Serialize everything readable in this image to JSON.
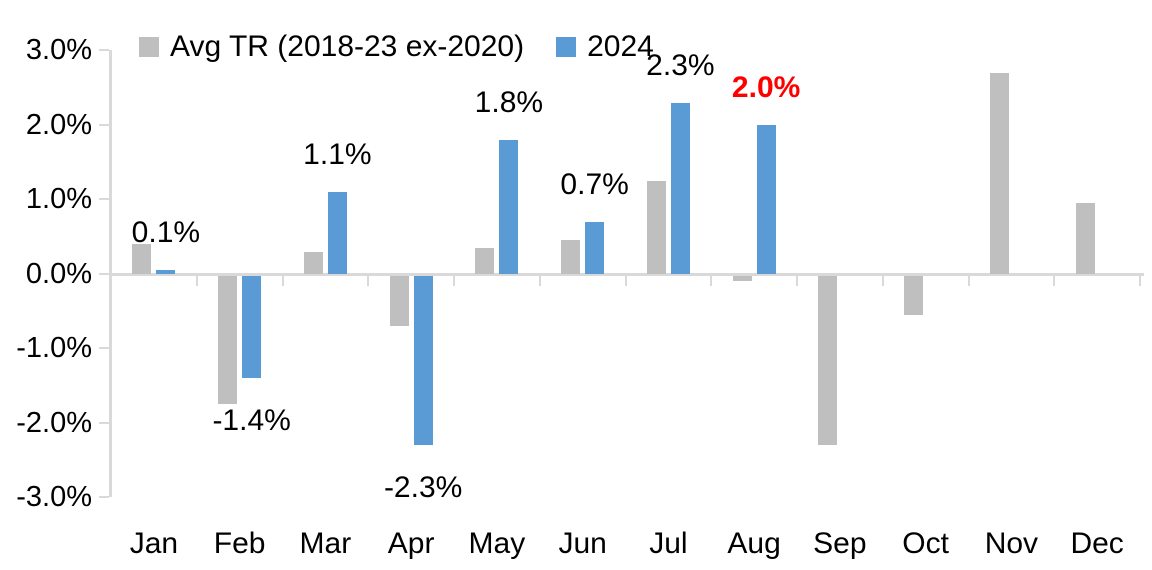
{
  "chart_data": {
    "type": "bar",
    "title": "",
    "xlabel": "",
    "ylabel": "",
    "categories": [
      "Jan",
      "Feb",
      "Mar",
      "Apr",
      "May",
      "Jun",
      "Jul",
      "Aug",
      "Sep",
      "Oct",
      "Nov",
      "Dec"
    ],
    "series": [
      {
        "name": "Avg TR (2018-23 ex-2020)",
        "color": "#bfbfbf",
        "values": [
          0.4,
          -1.75,
          0.3,
          -0.7,
          0.35,
          0.45,
          1.25,
          -0.1,
          -2.3,
          -0.55,
          2.7,
          0.95
        ]
      },
      {
        "name": "2024",
        "color": "#5b9bd5",
        "values": [
          0.05,
          -1.4,
          1.1,
          -2.3,
          1.8,
          0.7,
          2.3,
          2.0,
          null,
          null,
          null,
          null
        ]
      }
    ],
    "data_labels": [
      {
        "category": "Jan",
        "series": "2024",
        "text": "0.1%",
        "color": "#000000",
        "bold": false
      },
      {
        "category": "Feb",
        "series": "2024",
        "text": "-1.4%",
        "color": "#000000",
        "bold": false
      },
      {
        "category": "Mar",
        "series": "2024",
        "text": "1.1%",
        "color": "#000000",
        "bold": false
      },
      {
        "category": "Apr",
        "series": "2024",
        "text": "-2.3%",
        "color": "#000000",
        "bold": false
      },
      {
        "category": "May",
        "series": "2024",
        "text": "1.8%",
        "color": "#000000",
        "bold": false
      },
      {
        "category": "Jun",
        "series": "2024",
        "text": "0.7%",
        "color": "#000000",
        "bold": false
      },
      {
        "category": "Jul",
        "series": "2024",
        "text": "2.3%",
        "color": "#000000",
        "bold": false
      },
      {
        "category": "Aug",
        "series": "2024",
        "text": "2.0%",
        "color": "#ff0000",
        "bold": true
      }
    ],
    "y_ticks": [
      "3.0%",
      "2.0%",
      "1.0%",
      "0.0%",
      "-1.0%",
      "-2.0%",
      "-3.0%"
    ],
    "ylim": [
      -3.0,
      3.0
    ],
    "y_step": 1.0,
    "grid": false,
    "legend_position": "top",
    "axis_color": "#d9d9d9",
    "background_color": "#ffffff"
  }
}
